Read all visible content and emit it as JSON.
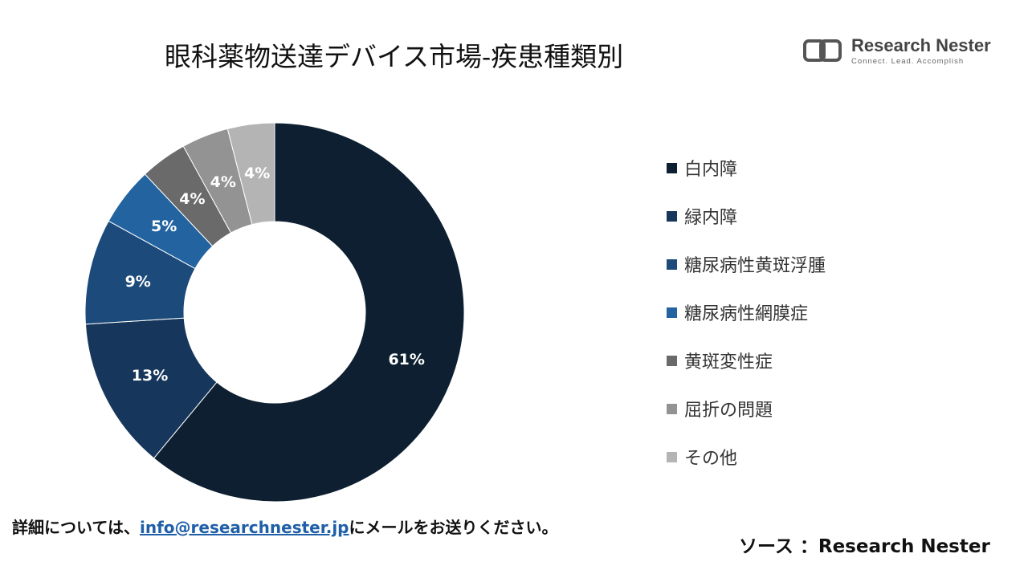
{
  "title": "眼科薬物送達デバイス市場-疾患種類別",
  "logo": {
    "name": "Research Nester",
    "tagline": "Connect. Lead. Accomplish"
  },
  "chart_data": {
    "type": "pie",
    "title": "眼科薬物送達デバイス市場-疾患種類別",
    "categories": [
      "白内障",
      "緑内障",
      "糖尿病性黄斑浮腫",
      "糖尿病性網膜症",
      "黄斑変性症",
      "屈折の問題",
      "その他"
    ],
    "values": [
      61,
      13,
      9,
      5,
      4,
      4,
      4
    ],
    "labels": [
      "61%",
      "13%",
      "9%",
      "5%",
      "4%",
      "4%",
      "4%"
    ],
    "colors": [
      "#0d1f30",
      "#16375b",
      "#1c4a7a",
      "#2263a0",
      "#6a6a6a",
      "#939393",
      "#b4b4b4"
    ],
    "legend_position": "right",
    "style": "donut"
  },
  "footer": {
    "prefix": "詳細については、",
    "email": "info@researchnester.jp",
    "suffix": "にメールをお送りください。"
  },
  "source": "ソース ：Research Nester"
}
